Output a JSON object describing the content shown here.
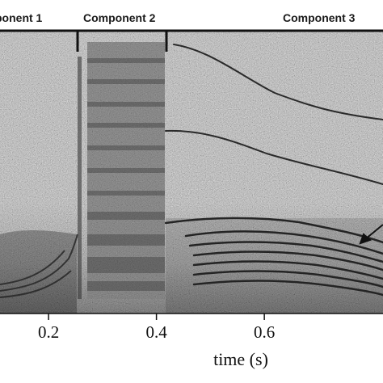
{
  "components": [
    {
      "label": "ponent 1",
      "x_start": 0.0,
      "x_end": 0.245
    },
    {
      "label": "Component 2",
      "x_start": 0.245,
      "x_end": 0.395
    },
    {
      "label": "Component 3",
      "x_start": 0.395,
      "x_end": 0.82
    }
  ],
  "x_axis": {
    "title": "time (s)",
    "range": [
      0.11,
      0.82
    ],
    "ticks": [
      {
        "value": 0.2,
        "label": "0.2"
      },
      {
        "value": 0.4,
        "label": "0.4"
      },
      {
        "value": 0.6,
        "label": "0.6"
      }
    ]
  },
  "colors": {
    "background": "#ffffff",
    "noise_base": "#8c8c8c",
    "trace": "#2a2a2a",
    "band": "#3a3a3a"
  }
}
